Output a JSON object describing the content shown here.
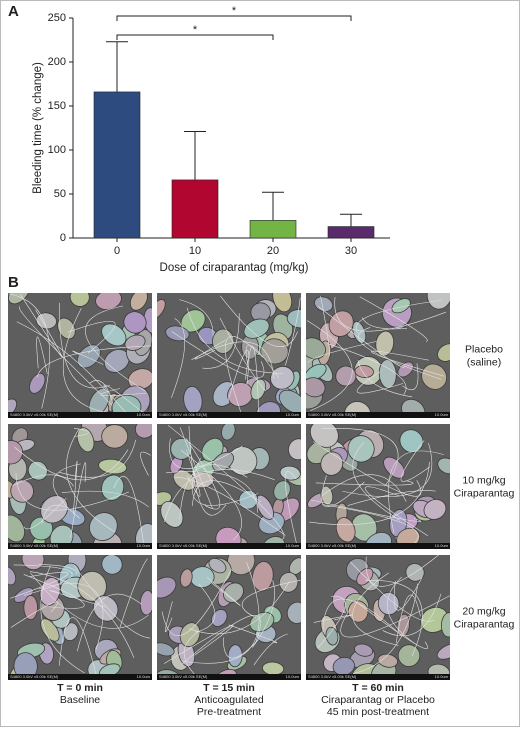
{
  "panel_a": {
    "label": "A"
  },
  "chart_data": {
    "type": "bar",
    "x_label": "Dose of ciraparantag (mg/kg)",
    "y_label": "Bleeding time (% change)",
    "categories": [
      "0",
      "10",
      "20",
      "30"
    ],
    "values": [
      166,
      66,
      20,
      13
    ],
    "errors": [
      57,
      55,
      32,
      14
    ],
    "colors": [
      "#2d4b7f",
      "#b1062f",
      "#72b544",
      "#5b2a6c"
    ],
    "ylim": [
      0,
      250
    ],
    "yticks": [
      0,
      50,
      100,
      150,
      200,
      250
    ],
    "grid": false,
    "comparisons": [
      {
        "pair": [
          "0",
          "30"
        ],
        "label": "*"
      },
      {
        "pair": [
          "0",
          "20"
        ],
        "label": "*"
      }
    ]
  },
  "panel_b": {
    "label": "B",
    "info_bar": {
      "left": "S4800 3.0kV x5.00k SE(M)",
      "right": "10.0um"
    },
    "rows": [
      [
        "Placebo",
        "(saline)"
      ],
      [
        "10 mg/kg",
        "Ciraparantag"
      ],
      [
        "20 mg/kg",
        "Ciraparantag"
      ]
    ],
    "columns": [
      {
        "time": "T = 0 min",
        "lines": [
          "Baseline"
        ]
      },
      {
        "time": "T = 15 min",
        "lines": [
          "Anticoagulated",
          "Pre-treatment"
        ]
      },
      {
        "time": "T = 60 min",
        "lines": [
          "Ciraparantag or Placebo",
          "45 min post-treatment"
        ]
      }
    ]
  }
}
